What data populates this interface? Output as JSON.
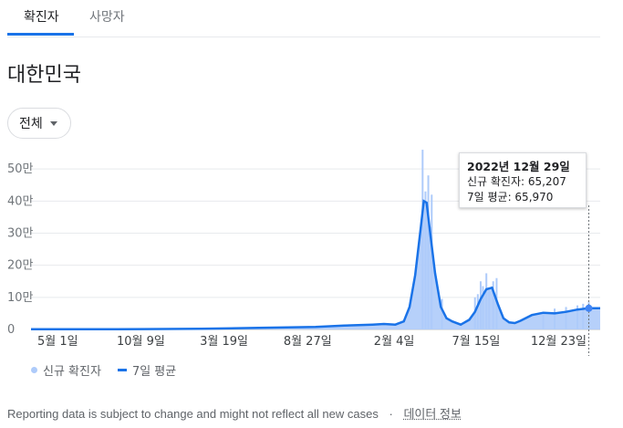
{
  "tabs": [
    {
      "label": "확진자",
      "active": true
    },
    {
      "label": "사망자",
      "active": false
    }
  ],
  "title": "대한민국",
  "filter": {
    "selected": "전체"
  },
  "tooltip": {
    "date": "2022년 12월 29일",
    "cases_line": "신규 확진자: 65,207",
    "avg_line": "7일 평균: 65,970"
  },
  "legend": {
    "cases": "신규 확진자",
    "avg": "7일 평균"
  },
  "footer": {
    "note": "Reporting data is subject to change and might not reflect all new cases",
    "separator": "·",
    "link": "데이터 정보"
  },
  "colors": {
    "bar": "#aecbfa",
    "line": "#1a73e8",
    "area": "#aecbfa"
  },
  "chart_data": {
    "type": "area",
    "ylim": [
      0,
      600000
    ],
    "ytick_values": [
      0,
      100000,
      200000,
      300000,
      400000,
      500000
    ],
    "yticks": [
      "0",
      "10만",
      "20만",
      "30만",
      "40만",
      "50만"
    ],
    "xticks": [
      "5월 1일",
      "10월 9일",
      "3월 19일",
      "8월 27일",
      "2월 4일",
      "7월 15일",
      "12월 23일"
    ],
    "xtick_index": [
      0.047,
      0.193,
      0.339,
      0.486,
      0.638,
      0.782,
      0.976
    ],
    "series": [
      {
        "name": "7일 평균",
        "x": [
          0,
          0.1,
          0.2,
          0.3,
          0.4,
          0.5,
          0.55,
          0.6,
          0.62,
          0.64,
          0.655,
          0.665,
          0.675,
          0.685,
          0.69,
          0.695,
          0.7,
          0.71,
          0.72,
          0.73,
          0.74,
          0.755,
          0.77,
          0.78,
          0.79,
          0.8,
          0.81,
          0.82,
          0.83,
          0.84,
          0.85,
          0.86,
          0.88,
          0.9,
          0.92,
          0.94,
          0.96,
          0.98,
          1.0
        ],
        "values": [
          500,
          500,
          1000,
          2000,
          5000,
          8000,
          12000,
          15000,
          17000,
          15000,
          25000,
          70000,
          170000,
          320000,
          400000,
          395000,
          320000,
          175000,
          70000,
          35000,
          25000,
          15000,
          30000,
          55000,
          95000,
          125000,
          130000,
          80000,
          35000,
          22000,
          20000,
          27000,
          45000,
          52000,
          50000,
          55000,
          62000,
          65970,
          66000
        ]
      },
      {
        "name": "신규 확진자",
        "x": [
          0.688,
          0.693,
          0.698,
          0.703,
          0.704,
          0.722,
          0.78,
          0.785,
          0.79,
          0.794,
          0.8,
          0.805,
          0.812,
          0.818,
          0.9,
          0.92,
          0.94,
          0.96,
          0.97,
          0.98
        ],
        "values": [
          560000,
          430000,
          480000,
          320000,
          420000,
          95000,
          100000,
          110000,
          150000,
          135000,
          175000,
          120000,
          150000,
          160000,
          55000,
          65000,
          70000,
          75000,
          80000,
          85000
        ]
      }
    ]
  }
}
